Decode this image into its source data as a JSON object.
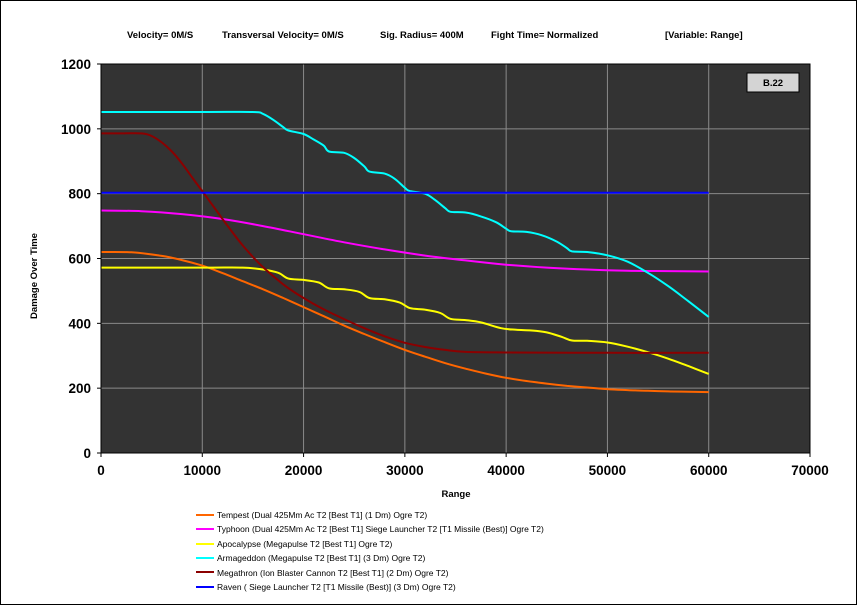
{
  "header": {
    "velocity": "Velocity= 0M/S",
    "transversal": "Transversal Velocity= 0M/S",
    "sig_radius": "Sig. Radius= 400M",
    "fight_time": "Fight Time= Normalized",
    "variable": "[Variable: Range]"
  },
  "badge": "B.22",
  "colors": {
    "plot_background": "#333333",
    "grid": "#8a8a8a"
  },
  "chart_data": {
    "type": "line",
    "title": "",
    "xlabel": "Range",
    "ylabel": "Damage Over Time",
    "xlim": [
      0,
      70000
    ],
    "ylim": [
      0,
      1200
    ],
    "xticks": [
      "0",
      "10000",
      "20000",
      "30000",
      "40000",
      "50000",
      "60000",
      "70000"
    ],
    "yticks": [
      "0",
      "200",
      "400",
      "600",
      "800",
      "1000",
      "1200"
    ],
    "grid": true,
    "legend_position": "bottom",
    "series": [
      {
        "name": "Tempest (Dual 425Mm Ac T2 [Best T1] (1 Dm) Ogre T2)",
        "color": "#ff6600",
        "points": [
          [
            0,
            620
          ],
          [
            3000,
            619
          ],
          [
            6000,
            608
          ],
          [
            8000,
            595
          ],
          [
            10000,
            578
          ],
          [
            12000,
            555
          ],
          [
            14000,
            530
          ],
          [
            16000,
            505
          ],
          [
            18000,
            478
          ],
          [
            20000,
            450
          ],
          [
            22000,
            422
          ],
          [
            24000,
            393
          ],
          [
            26000,
            367
          ],
          [
            28000,
            342
          ],
          [
            30000,
            318
          ],
          [
            32000,
            297
          ],
          [
            34000,
            277
          ],
          [
            36000,
            260
          ],
          [
            38000,
            245
          ],
          [
            40000,
            232
          ],
          [
            42000,
            222
          ],
          [
            44000,
            214
          ],
          [
            46000,
            207
          ],
          [
            48000,
            202
          ],
          [
            50000,
            197
          ],
          [
            52000,
            194
          ],
          [
            54000,
            192
          ],
          [
            56000,
            190
          ],
          [
            58000,
            189
          ],
          [
            60000,
            188
          ]
        ]
      },
      {
        "name": "Typhoon (Dual 425Mm Ac T2 [Best T1] Siege Launcher T2 [T1 Missile (Best)] Ogre T2)",
        "color": "#ff00ff",
        "points": [
          [
            0,
            748
          ],
          [
            4000,
            746
          ],
          [
            8000,
            737
          ],
          [
            12000,
            722
          ],
          [
            16000,
            700
          ],
          [
            20000,
            675
          ],
          [
            24000,
            650
          ],
          [
            28000,
            628
          ],
          [
            32000,
            609
          ],
          [
            36000,
            594
          ],
          [
            40000,
            581
          ],
          [
            44000,
            572
          ],
          [
            48000,
            566
          ],
          [
            52000,
            562
          ],
          [
            56000,
            561
          ],
          [
            60000,
            560
          ]
        ]
      },
      {
        "name": "Apocalypse (Megapulse T2 [Best T1] Ogre T2)",
        "color": "#ffff00",
        "points": [
          [
            0,
            572
          ],
          [
            10000,
            572
          ],
          [
            14000,
            572
          ],
          [
            16000,
            566
          ],
          [
            17500,
            556
          ],
          [
            18500,
            538
          ],
          [
            20000,
            534
          ],
          [
            21500,
            526
          ],
          [
            22500,
            508
          ],
          [
            24000,
            505
          ],
          [
            25500,
            497
          ],
          [
            26500,
            478
          ],
          [
            28000,
            474
          ],
          [
            29500,
            464
          ],
          [
            30500,
            447
          ],
          [
            32000,
            442
          ],
          [
            33500,
            432
          ],
          [
            34500,
            414
          ],
          [
            36000,
            410
          ],
          [
            37500,
            403
          ],
          [
            39500,
            385
          ],
          [
            41000,
            380
          ],
          [
            42500,
            378
          ],
          [
            44000,
            372
          ],
          [
            45500,
            358
          ],
          [
            46500,
            347
          ],
          [
            48000,
            346
          ],
          [
            50000,
            341
          ],
          [
            52000,
            328
          ],
          [
            54000,
            311
          ],
          [
            56000,
            291
          ],
          [
            58000,
            268
          ],
          [
            60000,
            244
          ]
        ]
      },
      {
        "name": "Armageddon (Megapulse T2 [Best T1] (3 Dm) Ogre T2)",
        "color": "#00ffff",
        "points": [
          [
            0,
            1052
          ],
          [
            10000,
            1052
          ],
          [
            15000,
            1052
          ],
          [
            16000,
            1046
          ],
          [
            17000,
            1028
          ],
          [
            18000,
            1005
          ],
          [
            18500,
            995
          ],
          [
            20000,
            984
          ],
          [
            21000,
            967
          ],
          [
            22000,
            948
          ],
          [
            22500,
            930
          ],
          [
            24000,
            926
          ],
          [
            25000,
            910
          ],
          [
            26000,
            884
          ],
          [
            26500,
            868
          ],
          [
            28000,
            862
          ],
          [
            29000,
            846
          ],
          [
            30000,
            818
          ],
          [
            30500,
            808
          ],
          [
            32000,
            800
          ],
          [
            33000,
            780
          ],
          [
            34000,
            755
          ],
          [
            34500,
            744
          ],
          [
            36000,
            742
          ],
          [
            37500,
            730
          ],
          [
            39000,
            712
          ],
          [
            40000,
            692
          ],
          [
            40500,
            684
          ],
          [
            42000,
            682
          ],
          [
            43500,
            672
          ],
          [
            45000,
            652
          ],
          [
            46000,
            632
          ],
          [
            46500,
            622
          ],
          [
            48000,
            620
          ],
          [
            50000,
            610
          ],
          [
            52000,
            590
          ],
          [
            54000,
            556
          ],
          [
            56000,
            515
          ],
          [
            58000,
            468
          ],
          [
            60000,
            420
          ]
        ]
      },
      {
        "name": "Megathron (Ion Blaster Cannon T2 [Best T1] (2 Dm) Ogre T2)",
        "color": "#8b0000",
        "points": [
          [
            0,
            986
          ],
          [
            2000,
            986
          ],
          [
            4000,
            986
          ],
          [
            5000,
            978
          ],
          [
            6000,
            958
          ],
          [
            7000,
            930
          ],
          [
            8000,
            893
          ],
          [
            9000,
            850
          ],
          [
            10000,
            808
          ],
          [
            11000,
            765
          ],
          [
            12000,
            722
          ],
          [
            13000,
            680
          ],
          [
            14000,
            640
          ],
          [
            15000,
            605
          ],
          [
            16000,
            573
          ],
          [
            18000,
            520
          ],
          [
            20000,
            478
          ],
          [
            22000,
            443
          ],
          [
            24000,
            413
          ],
          [
            26000,
            385
          ],
          [
            28000,
            360
          ],
          [
            30000,
            340
          ],
          [
            32000,
            327
          ],
          [
            34000,
            318
          ],
          [
            36000,
            312
          ],
          [
            40000,
            310
          ],
          [
            50000,
            309
          ],
          [
            60000,
            309
          ]
        ]
      },
      {
        "name": "Raven ( Siege Launcher T2 [T1 Missile (Best)] (3 Dm) Ogre T2)",
        "color": "#0000ff",
        "points": [
          [
            0,
            803
          ],
          [
            60000,
            803
          ]
        ]
      }
    ]
  }
}
